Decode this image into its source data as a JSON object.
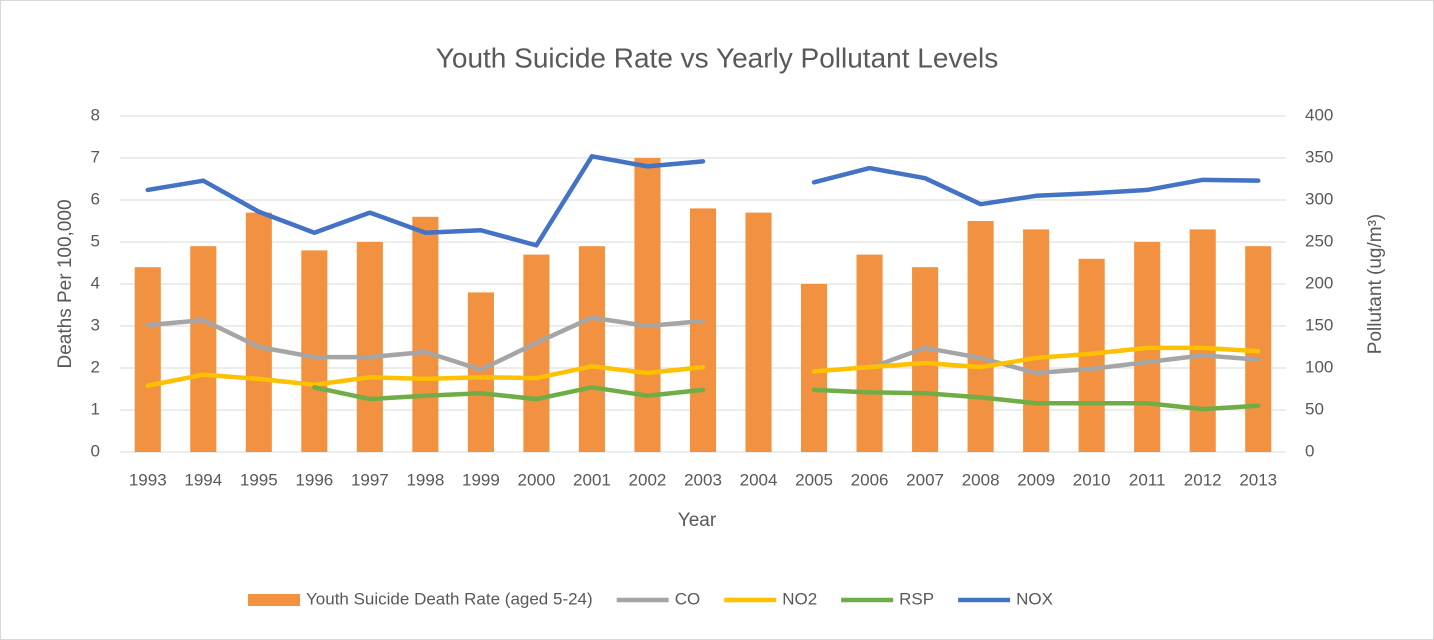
{
  "chart_data": {
    "type": "combo",
    "title": "Youth Suicide Rate vs Yearly Pollutant Levels",
    "x_label": "Year",
    "y_label": "Deaths Per 100,000",
    "y2_label": "Pollutant (ug/m³)",
    "categories": [
      "1993",
      "1994",
      "1995",
      "1996",
      "1997",
      "1998",
      "1999",
      "2000",
      "2001",
      "2002",
      "2003",
      "2004",
      "2005",
      "2006",
      "2007",
      "2008",
      "2009",
      "2010",
      "2011",
      "2012",
      "2013"
    ],
    "ylim": [
      0,
      8
    ],
    "yticks": [
      0,
      1,
      2,
      3,
      4,
      5,
      6,
      7,
      8
    ],
    "y2lim": [
      0,
      400
    ],
    "y2ticks": [
      0,
      50,
      100,
      150,
      200,
      250,
      300,
      350,
      400
    ],
    "grid": true,
    "legend": "bottom",
    "series": [
      {
        "name": "Youth Suicide Death Rate (aged 5-24)",
        "type": "bar",
        "color": "#f2913f",
        "values": [
          4.4,
          4.9,
          5.7,
          4.8,
          5.0,
          5.6,
          3.8,
          4.7,
          4.9,
          7.0,
          5.8,
          5.7,
          4.0,
          4.7,
          4.4,
          5.5,
          5.3,
          4.6,
          5.0,
          5.3,
          4.9
        ]
      },
      {
        "name": "CO",
        "type": "line",
        "axis": "y2",
        "color": "#a5a5a5",
        "values": [
          151,
          157,
          125,
          113,
          113,
          119,
          98,
          130,
          160,
          150,
          156,
          null,
          null,
          100,
          124,
          112,
          94,
          99,
          107,
          115,
          110
        ]
      },
      {
        "name": "NO2",
        "type": "line",
        "axis": "y2",
        "color": "#ffc000",
        "values": [
          79,
          92,
          87,
          80,
          89,
          87,
          89,
          88,
          102,
          94,
          101,
          null,
          96,
          101,
          106,
          101,
          112,
          117,
          124,
          124,
          120
        ]
      },
      {
        "name": "RSP",
        "type": "line",
        "axis": "y2",
        "color": "#70ad47",
        "values": [
          null,
          null,
          null,
          77,
          63,
          67,
          70,
          63,
          77,
          67,
          74,
          null,
          74,
          71,
          70,
          65,
          58,
          58,
          58,
          51,
          55
        ]
      },
      {
        "name": "NOX",
        "type": "line",
        "axis": "y2",
        "color": "#4472c4",
        "values": [
          312,
          323,
          286,
          261,
          285,
          261,
          264,
          246,
          352,
          340,
          346,
          null,
          321,
          338,
          326,
          295,
          305,
          308,
          312,
          324,
          323
        ]
      }
    ]
  }
}
